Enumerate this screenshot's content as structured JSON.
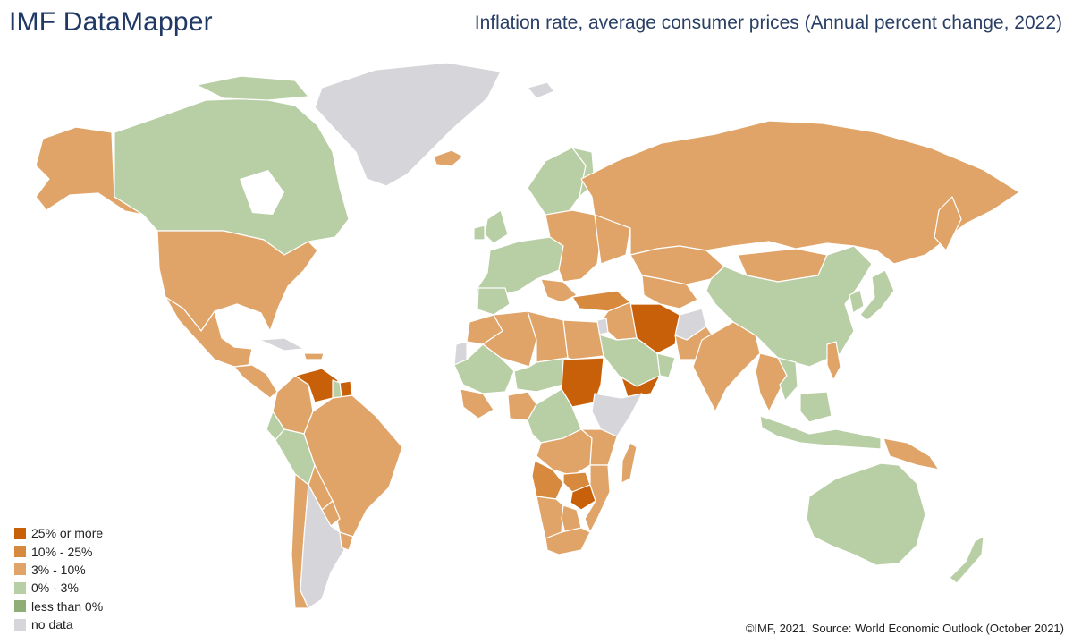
{
  "header": {
    "app_title": "IMF DataMapper",
    "map_title": "Inflation rate, average consumer prices (Annual percent change, 2022)"
  },
  "legend": {
    "items": [
      {
        "label": "25% or more",
        "color": "#c8600a"
      },
      {
        "label": "10% - 25%",
        "color": "#d78a3e"
      },
      {
        "label": "3% - 10%",
        "color": "#e0a468"
      },
      {
        "label": "0% - 3%",
        "color": "#b8cea4"
      },
      {
        "label": "less than 0%",
        "color": "#8fae76"
      },
      {
        "label": "no data",
        "color": "#d6d6da"
      }
    ]
  },
  "footer": {
    "source": "©IMF, 2021, Source: World Economic Outlook (October 2021)"
  },
  "colors": {
    "c25_more": "#c8600a",
    "c10_25": "#d78a3e",
    "c3_10": "#e0a468",
    "c0_3": "#b8cea4",
    "c_negative": "#8fae76",
    "no_data": "#d6d6da",
    "title": "#1f3864"
  }
}
